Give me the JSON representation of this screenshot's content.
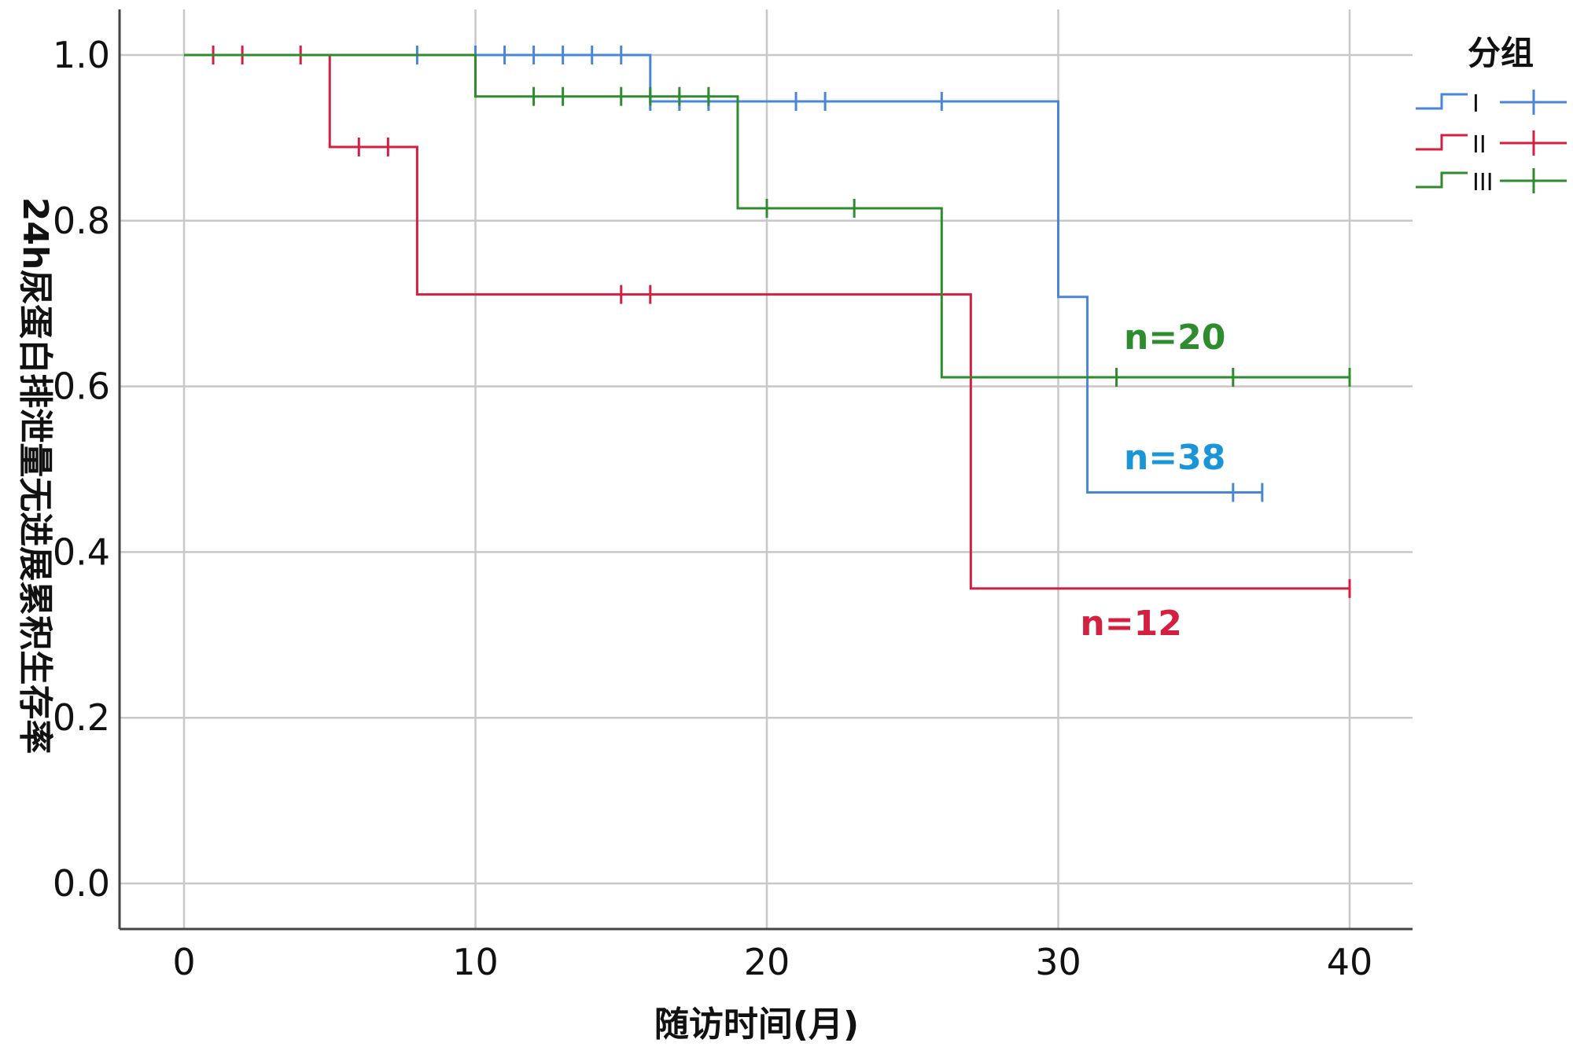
{
  "chart_data": {
    "type": "line",
    "subtype": "kaplan-meier-step",
    "xlabel": "随访时间(月)",
    "ylabel": "24h尿蛋白排泄量无进展累积生存率",
    "xlim": [
      0,
      40
    ],
    "ylim": [
      0,
      1.0
    ],
    "x_ticks": [
      "0",
      "10",
      "20",
      "30",
      "40"
    ],
    "y_ticks": [
      "0.0",
      "0.2",
      "0.4",
      "0.6",
      "0.8",
      "1.0"
    ],
    "grid": true,
    "legend": {
      "title": "分组",
      "position": "top-right",
      "entries": [
        "I",
        "II",
        "III"
      ]
    },
    "series": [
      {
        "name": "I",
        "color": "#4a86d6",
        "steps": [
          [
            0,
            1.0
          ],
          [
            16,
            0.944
          ],
          [
            30,
            0.708
          ],
          [
            31,
            0.472
          ],
          [
            37,
            0.472
          ]
        ],
        "censored": [
          [
            8,
            1.0
          ],
          [
            10,
            1.0
          ],
          [
            11,
            1.0
          ],
          [
            12,
            1.0
          ],
          [
            13,
            1.0
          ],
          [
            14,
            1.0
          ],
          [
            15,
            1.0
          ],
          [
            16,
            0.944
          ],
          [
            17,
            0.944
          ],
          [
            18,
            0.944
          ],
          [
            21,
            0.944
          ],
          [
            22,
            0.944
          ],
          [
            26,
            0.944
          ],
          [
            36,
            0.472
          ],
          [
            37,
            0.472
          ]
        ],
        "annotation": {
          "text": "n=38",
          "x": 34,
          "y": 0.5,
          "color": "#1a96d8"
        }
      },
      {
        "name": "II",
        "color": "#d42040",
        "steps": [
          [
            0,
            1.0
          ],
          [
            5,
            0.889
          ],
          [
            8,
            0.711
          ],
          [
            27,
            0.356
          ],
          [
            40,
            0.356
          ]
        ],
        "censored": [
          [
            1,
            1.0
          ],
          [
            2,
            1.0
          ],
          [
            4,
            1.0
          ],
          [
            6,
            0.889
          ],
          [
            7,
            0.889
          ],
          [
            15,
            0.711
          ],
          [
            16,
            0.711
          ],
          [
            40,
            0.356
          ]
        ],
        "annotation": {
          "text": "n=12",
          "x": 32.5,
          "y": 0.3,
          "color": "#d42040"
        }
      },
      {
        "name": "III",
        "color": "#2e8b2e",
        "steps": [
          [
            0,
            1.0
          ],
          [
            10,
            0.95
          ],
          [
            19,
            0.815
          ],
          [
            26,
            0.611
          ],
          [
            40,
            0.611
          ]
        ],
        "censored": [
          [
            12,
            0.95
          ],
          [
            13,
            0.95
          ],
          [
            15,
            0.95
          ],
          [
            16,
            0.95
          ],
          [
            17,
            0.95
          ],
          [
            18,
            0.95
          ],
          [
            20,
            0.815
          ],
          [
            23,
            0.815
          ],
          [
            32,
            0.611
          ],
          [
            36,
            0.611
          ],
          [
            40,
            0.611
          ]
        ],
        "annotation": {
          "text": "n=20",
          "x": 34,
          "y": 0.645,
          "color": "#2e8b2e"
        }
      }
    ]
  }
}
